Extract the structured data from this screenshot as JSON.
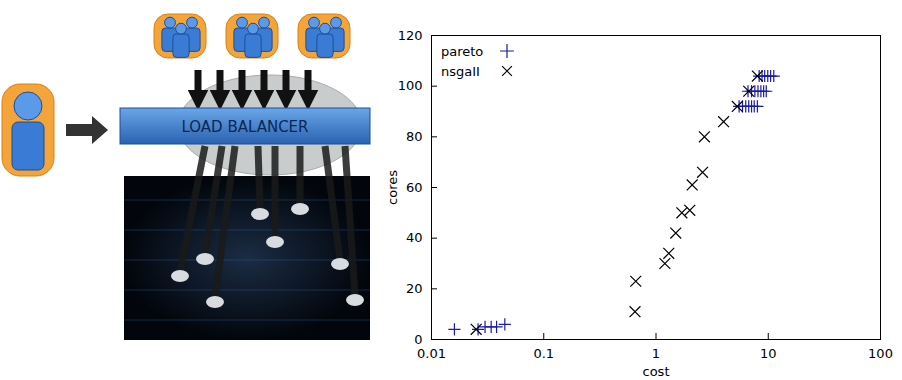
{
  "diagram": {
    "label": "LOAD BALANCER"
  },
  "chart_data": {
    "type": "scatter",
    "x_label": "cost",
    "y_label": "cores",
    "log": "x",
    "grid": false,
    "legend": "top-left",
    "xlim": [
      0.01,
      100
    ],
    "xticks": [
      0.01,
      0.1,
      1,
      10,
      100
    ],
    "ylim": [
      0,
      120
    ],
    "yticks": [
      0,
      20,
      40,
      60,
      80,
      100,
      120
    ],
    "series": [
      {
        "name": "pareto",
        "color": "#1a1aa6",
        "marker": "plus",
        "x": [
          0.016,
          0.026,
          0.03,
          0.034,
          0.038,
          0.045,
          5.5,
          5.9,
          6.3,
          6.7,
          7.1,
          7.5,
          8.0,
          6.6,
          7.1,
          7.6,
          8.1,
          8.6,
          9.1,
          9.6,
          8.3,
          8.8,
          9.3,
          9.9,
          10.5,
          11.2
        ],
        "values": [
          4,
          4,
          5,
          5,
          5,
          6,
          92,
          92,
          92,
          92,
          92,
          92,
          92,
          98,
          98,
          98,
          98,
          98,
          98,
          98,
          104,
          104,
          104,
          104,
          104,
          104
        ]
      },
      {
        "name": "nsgaII",
        "color": "#000000",
        "marker": "times",
        "x": [
          0.025,
          0.65,
          0.66,
          1.2,
          1.3,
          1.5,
          1.7,
          2.0,
          2.1,
          2.6,
          2.7,
          4.0,
          5.3,
          6.7,
          8.0
        ],
        "values": [
          4,
          11,
          23,
          30,
          34,
          42,
          50,
          51,
          61,
          66,
          80,
          86,
          92,
          98,
          104
        ]
      }
    ]
  }
}
